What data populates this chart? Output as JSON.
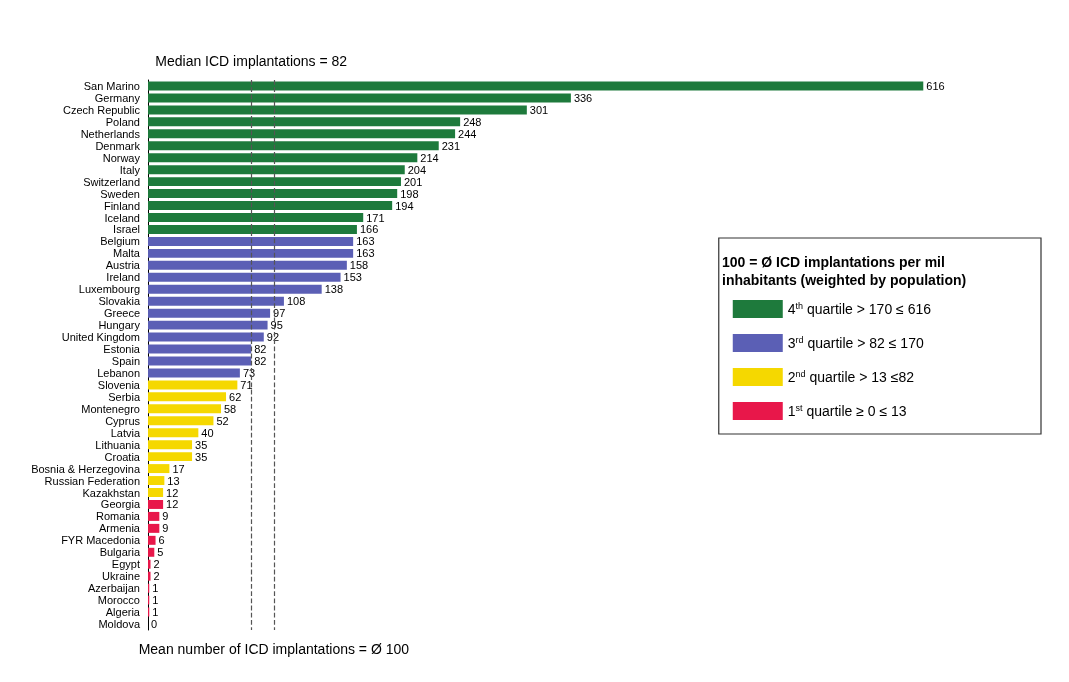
{
  "chart_data": {
    "type": "bar",
    "orientation": "horizontal",
    "data_labels": true,
    "tick_labels": "y",
    "legend": "right",
    "legend_title": "100 = Ø ICD implantations per mil inhabitants (weighted by population)",
    "categories": [
      "San Marino",
      "Germany",
      "Czech Republic",
      "Poland",
      "Netherlands",
      "Denmark",
      "Norway",
      "Italy",
      "Switzerland",
      "Sweden",
      "Finland",
      "Iceland",
      "Israel",
      "Belgium",
      "Malta",
      "Austria",
      "Ireland",
      "Luxembourg",
      "Slovakia",
      "Greece",
      "Hungary",
      "United Kingdom",
      "Estonia",
      "Spain",
      "Lebanon",
      "Slovenia",
      "Serbia",
      "Montenegro",
      "Cyprus",
      "Latvia",
      "Lithuania",
      "Croatia",
      "Bosnia & Herzegovina",
      "Russian Federation",
      "Kazakhstan",
      "Georgia",
      "Romania",
      "Armenia",
      "FYR Macedonia",
      "Bulgaria",
      "Egypt",
      "Ukraine",
      "Azerbaijan",
      "Morocco",
      "Algeria",
      "Moldova"
    ],
    "series": [
      {
        "name": "4$^{th}$ quartile > 170 ≤ 616",
        "color": "#1e7a3c",
        "values": [
          616,
          336,
          301,
          248,
          244,
          231,
          214,
          204,
          201,
          198,
          194,
          171,
          166,
          null,
          null,
          null,
          null,
          null,
          null,
          null,
          null,
          null,
          null,
          null,
          null,
          null,
          null,
          null,
          null,
          null,
          null,
          null,
          null,
          null,
          null,
          null,
          null,
          null,
          null,
          null,
          null,
          null,
          null,
          null,
          null,
          null
        ]
      },
      {
        "name": "3$^{rd}$ quartile > 82 ≤ 170",
        "color": "#5b5fb5",
        "values": [
          null,
          null,
          null,
          null,
          null,
          null,
          null,
          null,
          null,
          null,
          null,
          null,
          null,
          163,
          163,
          158,
          153,
          138,
          108,
          97,
          95,
          92,
          82,
          82,
          73,
          null,
          null,
          null,
          null,
          null,
          null,
          null,
          null,
          null,
          null,
          null,
          null,
          null,
          null,
          null,
          null,
          null,
          null,
          null,
          null,
          null
        ]
      },
      {
        "name": "2$^{nd}$ quartile > 13 ≤82",
        "color": "#f5d800",
        "values": [
          null,
          null,
          null,
          null,
          null,
          null,
          null,
          null,
          null,
          null,
          null,
          null,
          null,
          null,
          null,
          null,
          null,
          null,
          null,
          null,
          null,
          null,
          null,
          null,
          null,
          71,
          62,
          58,
          52,
          40,
          35,
          35,
          17,
          13,
          12,
          null,
          null,
          null,
          null,
          null,
          null,
          null,
          null,
          null,
          null,
          null
        ]
      },
      {
        "name": "1$^{st}$ quartile ≥ 0 ≤ 13",
        "color": "#e8174a",
        "values": [
          null,
          null,
          null,
          null,
          null,
          null,
          null,
          null,
          null,
          null,
          null,
          null,
          null,
          null,
          null,
          null,
          null,
          null,
          null,
          null,
          null,
          null,
          null,
          null,
          null,
          null,
          null,
          null,
          null,
          null,
          null,
          null,
          null,
          null,
          null,
          12,
          9,
          9,
          6,
          5,
          2,
          2,
          1,
          1,
          1,
          0
        ]
      }
    ],
    "ref_lines": [
      {
        "axis": "x",
        "value": 82,
        "label": "Median ICD implantations = 82",
        "line_style": "dashed",
        "color": "#555555"
      },
      {
        "axis": "x",
        "value": 100,
        "label": "Mean number of ICD implantations = Ø 100",
        "line_style": "dashed",
        "color": "#555555"
      }
    ]
  }
}
